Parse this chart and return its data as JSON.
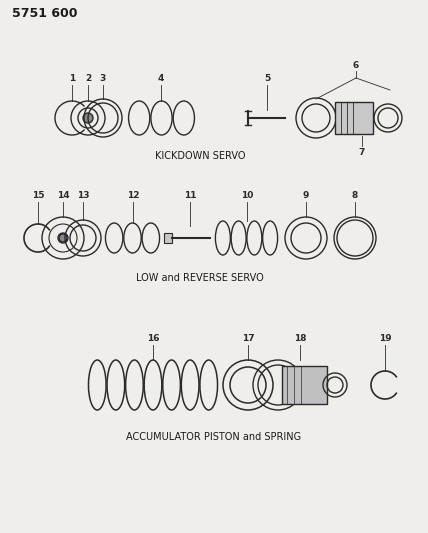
{
  "title": "5751 600",
  "section1_label": "KICKDOWN SERVO",
  "section2_label": "LOW and REVERSE SERVO",
  "section3_label": "ACCUMULATOR PISTON and SPRING",
  "bg_color": "#f0eeea",
  "line_color": "#2a2a2a",
  "text_color": "#1a1a1a",
  "figsize": [
    4.28,
    5.33
  ],
  "dpi": 100
}
